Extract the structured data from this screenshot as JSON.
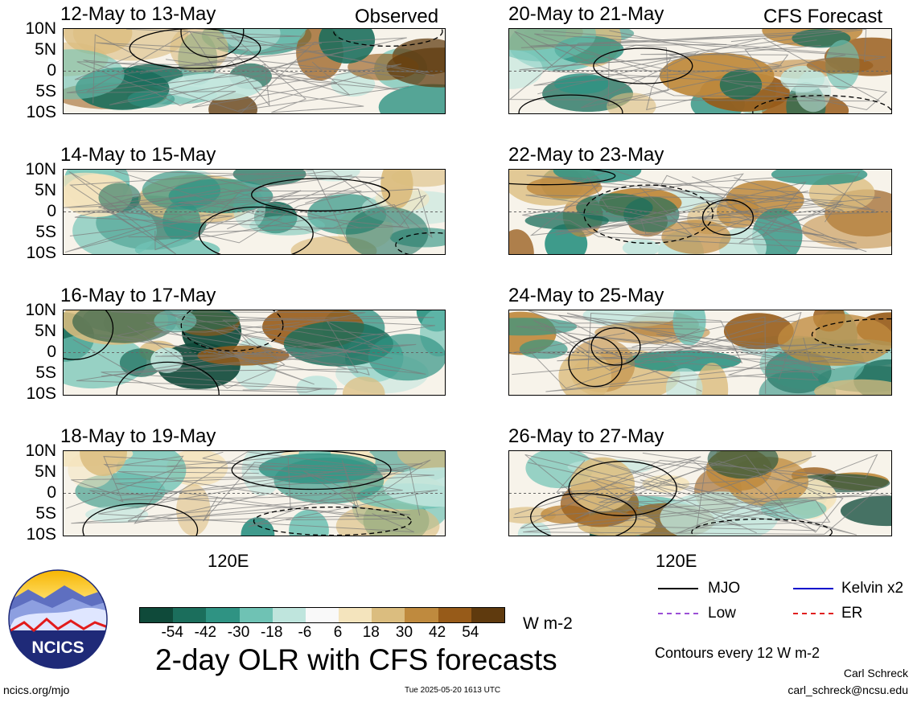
{
  "header": {
    "left": "Observed",
    "right": "CFS Forecast"
  },
  "lat_labels": [
    "10N",
    "5N",
    "0",
    "5S",
    "10S"
  ],
  "lon_label": "120E",
  "panels": {
    "observed": [
      {
        "period": "12-May to 13-May"
      },
      {
        "period": "14-May to 15-May"
      },
      {
        "period": "16-May to 17-May"
      },
      {
        "period": "18-May to 19-May"
      }
    ],
    "forecast": [
      {
        "period": "20-May to 21-May"
      },
      {
        "period": "22-May to 23-May"
      },
      {
        "period": "24-May to 25-May"
      },
      {
        "period": "26-May to 27-May"
      }
    ]
  },
  "colorbar": {
    "ticks": [
      "-54",
      "-42",
      "-30",
      "-18",
      "-6",
      "6",
      "18",
      "30",
      "42",
      "54"
    ],
    "colors": [
      "#0f4a3a",
      "#1b6e5c",
      "#2f9383",
      "#6fc2b4",
      "#bfe5dd",
      "#f9f9f9",
      "#f4e4bd",
      "#dbbd7f",
      "#bf8a3e",
      "#975b19",
      "#5f3a0e"
    ],
    "units": "W m-2"
  },
  "main_title": "2-day OLR with CFS forecasts",
  "legend": {
    "items": [
      {
        "label": "MJO",
        "color": "#000000"
      },
      {
        "label": "Kelvin x2",
        "color": "#0000cc"
      },
      {
        "label": "Low",
        "color": "#9b4fd6"
      },
      {
        "label": "ER",
        "color": "#e02020"
      }
    ],
    "contours_note": "Contours every 12 W m-2"
  },
  "logo": {
    "text": "NCICS"
  },
  "footer": {
    "site": "ncics.org/mjo",
    "timestamp": "Tue 2025-05-20 1613 UTC",
    "author": "Carl Schreck",
    "email": "carl_schreck@ncsu.edu"
  }
}
